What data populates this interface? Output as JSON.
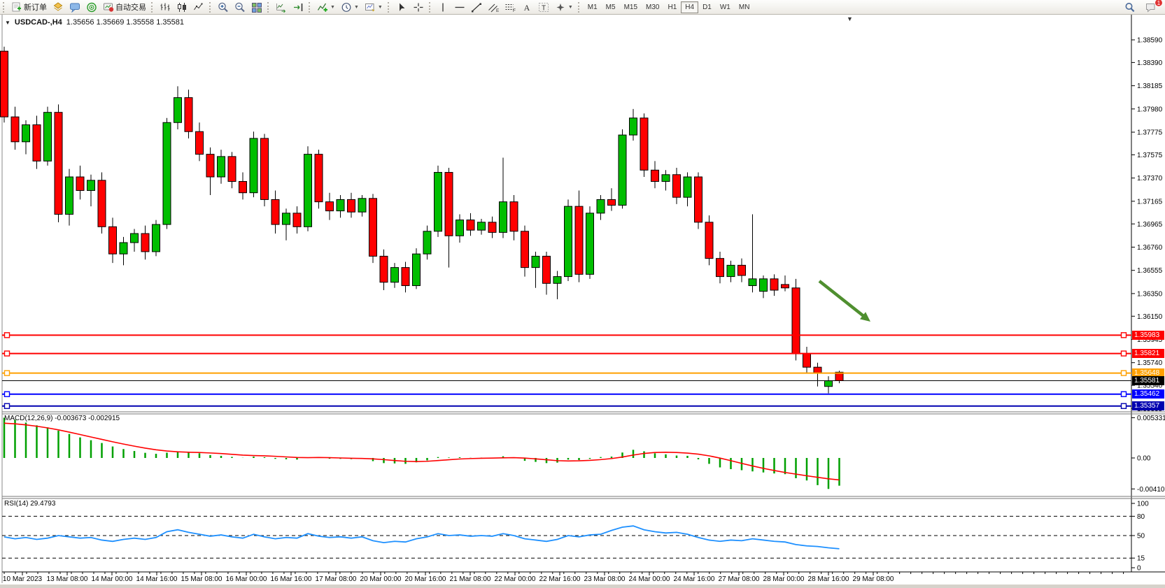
{
  "toolbar": {
    "groups": [
      {
        "items": [
          {
            "name": "new-order-button",
            "icon": "new-order",
            "label": "新订单"
          },
          {
            "name": "metaeditor-button",
            "icon": "metaeditor"
          },
          {
            "name": "market-watch-button",
            "icon": "messenger"
          },
          {
            "name": "signals-button",
            "icon": "radar"
          },
          {
            "name": "autotrading-button",
            "icon": "autotrade",
            "label": "自动交易"
          }
        ]
      },
      {
        "items": [
          {
            "name": "bar-chart-button",
            "icon": "bar-chart"
          },
          {
            "name": "candlestick-button",
            "icon": "candlestick"
          },
          {
            "name": "line-chart-button",
            "icon": "line-chart"
          }
        ]
      },
      {
        "items": [
          {
            "name": "zoom-in-button",
            "icon": "zoom-in"
          },
          {
            "name": "zoom-out-button",
            "icon": "zoom-out"
          },
          {
            "name": "tile-windows-button",
            "icon": "tile-windows"
          }
        ]
      },
      {
        "items": [
          {
            "name": "auto-scroll-button",
            "icon": "auto-scroll"
          },
          {
            "name": "chart-shift-button",
            "icon": "shift-end"
          }
        ]
      },
      {
        "items": [
          {
            "name": "indicators-button",
            "icon": "indicators",
            "dropdown": true
          },
          {
            "name": "periods-button",
            "icon": "clock",
            "dropdown": true
          },
          {
            "name": "templates-button",
            "icon": "templates",
            "dropdown": true
          }
        ]
      },
      {
        "items": [
          {
            "name": "cursor-button",
            "icon": "cursor"
          },
          {
            "name": "crosshair-button",
            "icon": "crosshair"
          }
        ]
      },
      {
        "items": [
          {
            "name": "vertical-line-button",
            "icon": "vline"
          },
          {
            "name": "horizontal-line-button",
            "icon": "hline"
          },
          {
            "name": "trendline-button",
            "icon": "trendline"
          },
          {
            "name": "equidistant-channel-button",
            "icon": "channel"
          },
          {
            "name": "fibonacci-button",
            "icon": "fibo"
          },
          {
            "name": "text-button",
            "icon": "letter-a"
          },
          {
            "name": "text-label-button",
            "icon": "text-label"
          },
          {
            "name": "arrows-button",
            "icon": "arrows",
            "dropdown": true
          }
        ]
      }
    ],
    "timeframes": {
      "options": [
        "M1",
        "M5",
        "M15",
        "M30",
        "H1",
        "H4",
        "D1",
        "W1",
        "MN"
      ],
      "active": "H4"
    },
    "right": [
      {
        "name": "search-button",
        "icon": "search"
      },
      {
        "name": "notifications-button",
        "icon": "chat",
        "badge": "1"
      }
    ]
  },
  "chart": {
    "collapse_icon": "▼",
    "symbol_title": "USDCAD-,H4",
    "ohlc_text": "1.35656 1.35669 1.35558 1.35581",
    "shift_marker": "▼"
  },
  "indicators": {
    "macd_label": "MACD(12,26,9) -0.003673 -0.002915",
    "rsi_label": "RSI(14) 29.4793"
  },
  "axes": {
    "price_ticks": [
      "1.38590",
      "1.38390",
      "1.38185",
      "1.37980",
      "1.37775",
      "1.37575",
      "1.37370",
      "1.37165",
      "1.36965",
      "1.36760",
      "1.36555",
      "1.36350",
      "1.36150",
      "1.35945",
      "1.35740",
      "1.35540",
      "1.35335"
    ],
    "macd_ticks": [
      {
        "v": 0.005331,
        "label": "0.005331"
      },
      {
        "v": 0,
        "label": "0.00"
      },
      {
        "v": -0.004102,
        "label": "-0.004102"
      }
    ],
    "rsi_ticks": [
      {
        "v": 100,
        "label": "100"
      },
      {
        "v": 80,
        "label": "80"
      },
      {
        "v": 50,
        "label": "50"
      },
      {
        "v": 15,
        "label": "15"
      },
      {
        "v": 0,
        "label": "0"
      }
    ],
    "time_labels": [
      "10 Mar 2023",
      "13 Mar 08:00",
      "14 Mar 00:00",
      "14 Mar 16:00",
      "15 Mar 08:00",
      "16 Mar 00:00",
      "16 Mar 16:00",
      "17 Mar 08:00",
      "20 Mar 00:00",
      "20 Mar 16:00",
      "21 Mar 08:00",
      "22 Mar 00:00",
      "22 Mar 16:00",
      "23 Mar 08:00",
      "24 Mar 00:00",
      "24 Mar 16:00",
      "27 Mar 08:00",
      "28 Mar 00:00",
      "28 Mar 16:00",
      "29 Mar 08:00"
    ]
  },
  "price_labels": [
    {
      "text": "1.35983",
      "price": 1.35983,
      "bg": "#FF0000"
    },
    {
      "text": "1.35821",
      "price": 1.35821,
      "bg": "#FF0000"
    },
    {
      "text": "1.35648",
      "price": 1.35648,
      "bg": "#FFA000"
    },
    {
      "text": "1.35581",
      "price": 1.35581,
      "bg": "#000000"
    },
    {
      "text": "1.35462",
      "price": 1.35462,
      "bg": "#0000FF"
    },
    {
      "text": "1.35357",
      "price": 1.35357,
      "bg": "#0000B0"
    }
  ],
  "colors": {
    "bull": "#00BE00",
    "bear": "#FF0000",
    "outline": "#000000",
    "macd_hist": "#00A000",
    "macd_signal": "#FF0000",
    "rsi_line": "#1E90FF",
    "arrow": "#4F8F2F"
  },
  "chart_data": [
    {
      "type": "candlestick",
      "symbol": "USDCAD",
      "timeframe": "H4",
      "title": "USDCAD-,H4",
      "ohlc_current": {
        "open": 1.35656,
        "high": 1.35669,
        "low": 1.35558,
        "close": 1.35581
      },
      "ylim": [
        1.35335,
        1.3859
      ],
      "current_price": 1.35581,
      "hlines": [
        {
          "price": 1.35983,
          "color": "#FF0000",
          "width": 2
        },
        {
          "price": 1.35821,
          "color": "#FF0000",
          "width": 2
        },
        {
          "price": 1.35648,
          "color": "#FFA000",
          "width": 2
        },
        {
          "price": 1.35462,
          "color": "#0000FF",
          "width": 2
        },
        {
          "price": 1.35357,
          "color": "#0000B0",
          "width": 2
        }
      ],
      "annotation_arrow": {
        "from": [
          1171,
          402
        ],
        "to": [
          1244,
          460
        ]
      },
      "candles": [
        [
          1.3849,
          1.3853,
          1.3786,
          1.3791
        ],
        [
          1.3791,
          1.38,
          1.3762,
          1.3769
        ],
        [
          1.3769,
          1.3788,
          1.3758,
          1.3784
        ],
        [
          1.3784,
          1.3792,
          1.3745,
          1.3752
        ],
        [
          1.3752,
          1.38,
          1.3748,
          1.3795
        ],
        [
          1.3795,
          1.3802,
          1.3698,
          1.3705
        ],
        [
          1.3705,
          1.3745,
          1.3695,
          1.3738
        ],
        [
          1.3738,
          1.3748,
          1.3718,
          1.3726
        ],
        [
          1.3726,
          1.374,
          1.3712,
          1.3735
        ],
        [
          1.3735,
          1.3742,
          1.3688,
          1.3694
        ],
        [
          1.3694,
          1.3702,
          1.3662,
          1.367
        ],
        [
          1.367,
          1.3685,
          1.366,
          1.368
        ],
        [
          1.368,
          1.3692,
          1.3672,
          1.3688
        ],
        [
          1.3688,
          1.3695,
          1.3665,
          1.3672
        ],
        [
          1.3672,
          1.37,
          1.3668,
          1.3696
        ],
        [
          1.3696,
          1.379,
          1.3692,
          1.3786
        ],
        [
          1.3786,
          1.3818,
          1.378,
          1.3808
        ],
        [
          1.3808,
          1.3815,
          1.3772,
          1.3778
        ],
        [
          1.3778,
          1.3786,
          1.3752,
          1.3758
        ],
        [
          1.3758,
          1.3764,
          1.3722,
          1.3738
        ],
        [
          1.3738,
          1.3762,
          1.3732,
          1.3756
        ],
        [
          1.3756,
          1.376,
          1.3728,
          1.3734
        ],
        [
          1.3734,
          1.3742,
          1.3718,
          1.3724
        ],
        [
          1.3724,
          1.3778,
          1.372,
          1.3772
        ],
        [
          1.3772,
          1.3776,
          1.3712,
          1.3718
        ],
        [
          1.3718,
          1.3726,
          1.3688,
          1.3696
        ],
        [
          1.3696,
          1.371,
          1.3682,
          1.3706
        ],
        [
          1.3706,
          1.3712,
          1.3688,
          1.3694
        ],
        [
          1.3694,
          1.3765,
          1.369,
          1.3758
        ],
        [
          1.3758,
          1.3762,
          1.371,
          1.3716
        ],
        [
          1.3716,
          1.3724,
          1.37,
          1.3708
        ],
        [
          1.3708,
          1.3722,
          1.3702,
          1.3718
        ],
        [
          1.3718,
          1.3724,
          1.3702,
          1.3707
        ],
        [
          1.3707,
          1.3722,
          1.3703,
          1.3719
        ],
        [
          1.3719,
          1.3723,
          1.3662,
          1.3668
        ],
        [
          1.3668,
          1.3674,
          1.3638,
          1.3645
        ],
        [
          1.3645,
          1.3662,
          1.364,
          1.3658
        ],
        [
          1.3658,
          1.3663,
          1.3636,
          1.3642
        ],
        [
          1.3642,
          1.3675,
          1.3639,
          1.367
        ],
        [
          1.367,
          1.3695,
          1.3665,
          1.369
        ],
        [
          1.369,
          1.3748,
          1.3685,
          1.3742
        ],
        [
          1.3742,
          1.3746,
          1.3658,
          1.3686
        ],
        [
          1.3686,
          1.3705,
          1.368,
          1.37
        ],
        [
          1.37,
          1.3706,
          1.3686,
          1.3691
        ],
        [
          1.3691,
          1.3701,
          1.3687,
          1.3698
        ],
        [
          1.3698,
          1.3703,
          1.3684,
          1.3689
        ],
        [
          1.3689,
          1.3755,
          1.3684,
          1.3716
        ],
        [
          1.3716,
          1.3722,
          1.3682,
          1.369
        ],
        [
          1.369,
          1.3695,
          1.365,
          1.3658
        ],
        [
          1.3658,
          1.3672,
          1.364,
          1.3668
        ],
        [
          1.3668,
          1.3672,
          1.3634,
          1.3644
        ],
        [
          1.3644,
          1.3655,
          1.363,
          1.365
        ],
        [
          1.365,
          1.3718,
          1.3646,
          1.3712
        ],
        [
          1.3712,
          1.3726,
          1.3645,
          1.3652
        ],
        [
          1.3652,
          1.3712,
          1.3648,
          1.3706
        ],
        [
          1.3706,
          1.3722,
          1.37,
          1.3718
        ],
        [
          1.3718,
          1.3728,
          1.3708,
          1.3713
        ],
        [
          1.3713,
          1.378,
          1.371,
          1.3775
        ],
        [
          1.3775,
          1.3798,
          1.377,
          1.379
        ],
        [
          1.379,
          1.3794,
          1.3738,
          1.3744
        ],
        [
          1.3744,
          1.3752,
          1.3728,
          1.3734
        ],
        [
          1.3734,
          1.3744,
          1.3726,
          1.374
        ],
        [
          1.374,
          1.3746,
          1.3714,
          1.372
        ],
        [
          1.372,
          1.3742,
          1.3712,
          1.3738
        ],
        [
          1.3738,
          1.3742,
          1.3692,
          1.3698
        ],
        [
          1.3698,
          1.3704,
          1.366,
          1.3666
        ],
        [
          1.3666,
          1.3672,
          1.3644,
          1.365
        ],
        [
          1.365,
          1.3664,
          1.3645,
          1.366
        ],
        [
          1.366,
          1.3666,
          1.3645,
          1.3651
        ],
        [
          1.3642,
          1.3705,
          1.3636,
          1.3648
        ],
        [
          1.3637,
          1.3651,
          1.3631,
          1.3648
        ],
        [
          1.3648,
          1.3652,
          1.3633,
          1.3638
        ],
        [
          1.3643,
          1.3651,
          1.3637,
          1.364
        ],
        [
          1.364,
          1.3648,
          1.3576,
          1.3582
        ],
        [
          1.3582,
          1.3588,
          1.3565,
          1.357
        ],
        [
          1.357,
          1.3574,
          1.3553,
          1.3565
        ],
        [
          1.3553,
          1.3562,
          1.3547,
          1.3558
        ],
        [
          1.35656,
          1.35669,
          1.35558,
          1.35581
        ]
      ]
    },
    {
      "type": "bar",
      "name": "MACD(12,26,9)",
      "label": "MACD(12,26,9) -0.003673 -0.002915",
      "main_value": -0.003673,
      "signal_value": -0.002915,
      "ylim": [
        -0.004102,
        0.005331
      ],
      "histogram": [
        0.005331,
        0.00505,
        0.00468,
        0.00432,
        0.00405,
        0.00362,
        0.00318,
        0.00272,
        0.00235,
        0.00198,
        0.00152,
        0.00118,
        0.00092,
        0.00068,
        0.00055,
        0.0007,
        0.00088,
        0.00082,
        0.00062,
        0.00038,
        0.00028,
        0.00014,
        2e-05,
        0.00018,
        0.0001,
        -0.00012,
        -0.00018,
        -0.00022,
        8e-05,
        4e-05,
        -0.0001,
        -0.00012,
        -0.00016,
        -0.00012,
        -0.00042,
        -0.00068,
        -0.00072,
        -0.00078,
        -0.00058,
        -0.00032,
        0.00012,
        6e-05,
        0.0001,
        2e-05,
        4e-05,
        -4e-05,
        0.00022,
        -2e-05,
        -0.00038,
        -0.00052,
        -0.00068,
        -0.00062,
        -0.00022,
        -0.00028,
        -0.00012,
        0.00012,
        0.00018,
        0.00072,
        0.00108,
        0.00088,
        0.00062,
        0.00048,
        0.00032,
        0.00028,
        -0.00018,
        -0.00078,
        -0.00125,
        -0.00148,
        -0.00162,
        -0.00178,
        -0.00192,
        -0.00205,
        -0.00215,
        -0.00268,
        -0.00298,
        -0.0036,
        -0.004102,
        -0.003673
      ],
      "signal": [
        0.0046,
        0.00452,
        0.00438,
        0.0042,
        0.00398,
        0.00372,
        0.00342,
        0.0031,
        0.00278,
        0.00246,
        0.00214,
        0.00184,
        0.00156,
        0.0013,
        0.00108,
        0.00092,
        0.00082,
        0.00076,
        0.00072,
        0.00066,
        0.00058,
        0.00048,
        0.00038,
        0.00032,
        0.00028,
        0.00022,
        0.00014,
        6e-05,
        4e-05,
        6e-05,
        4e-05,
        0,
        -4e-05,
        -6e-05,
        -0.00012,
        -0.00022,
        -0.00034,
        -0.00044,
        -0.00048,
        -0.00044,
        -0.00034,
        -0.00024,
        -0.00014,
        -8e-05,
        -4e-05,
        -2e-05,
        2e-05,
        4e-05,
        -2e-05,
        -0.00012,
        -0.00024,
        -0.00036,
        -0.0004,
        -0.00038,
        -0.00032,
        -0.00022,
        -8e-05,
        0.00012,
        0.00038,
        0.0006,
        0.00072,
        0.00076,
        0.00072,
        0.00064,
        0.0005,
        0.00028,
        -2e-05,
        -0.00036,
        -0.00072,
        -0.00106,
        -0.00138,
        -0.00166,
        -0.00192,
        -0.00214,
        -0.00236,
        -0.00256,
        -0.00276,
        -0.002915
      ]
    },
    {
      "type": "line",
      "name": "RSI(14)",
      "label": "RSI(14) 29.4793",
      "current_value": 29.4793,
      "ylim": [
        0,
        100
      ],
      "levels": [
        80,
        50,
        15
      ],
      "values": [
        48,
        45,
        47,
        44,
        46,
        50,
        48,
        46,
        47,
        43,
        41,
        44,
        46,
        44,
        47,
        56,
        59,
        55,
        52,
        49,
        51,
        48,
        46,
        52,
        48,
        45,
        47,
        46,
        53,
        49,
        47,
        48,
        46,
        48,
        42,
        39,
        41,
        40,
        45,
        48,
        53,
        50,
        51,
        49,
        50,
        49,
        53,
        50,
        45,
        43,
        41,
        44,
        50,
        48,
        51,
        52,
        58,
        63,
        65,
        59,
        56,
        54,
        55,
        52,
        47,
        43,
        41,
        43,
        42,
        45,
        43,
        41,
        40,
        36,
        34,
        33,
        31,
        29.4793
      ]
    }
  ]
}
